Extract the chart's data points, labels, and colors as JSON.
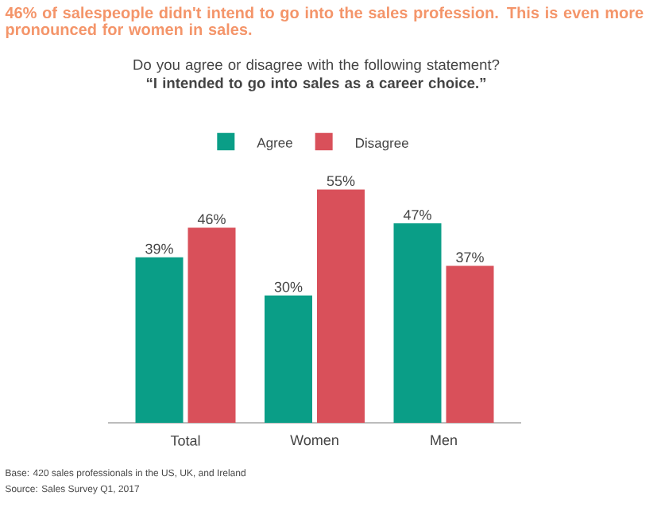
{
  "chart_data": {
    "type": "bar",
    "title": "46% of salespeople didn't intend to go into the sales profession. This is even more pronounced for women in sales.",
    "subtitle": "Do you agree or disagree with the following statement? **“I intended to go into sales as a career choice.”**",
    "categories": [
      "Total",
      "Women",
      "Men"
    ],
    "series": [
      {
        "name": "Agree",
        "color": "#0a9e87",
        "values": [
          39,
          30,
          47
        ],
        "value_labels": [
          "39%",
          "30%",
          "47%"
        ]
      },
      {
        "name": "Disagree",
        "color": "#d9505a",
        "values": [
          46,
          55,
          37
        ],
        "value_labels": [
          "46%",
          "55%",
          "37%"
        ]
      }
    ],
    "legend": "top",
    "grid": false,
    "annotations": [
      "Base: 420 sales professionals in the US, UK, and Ireland",
      "Source: Sales Survey Q1, 2017"
    ]
  }
}
